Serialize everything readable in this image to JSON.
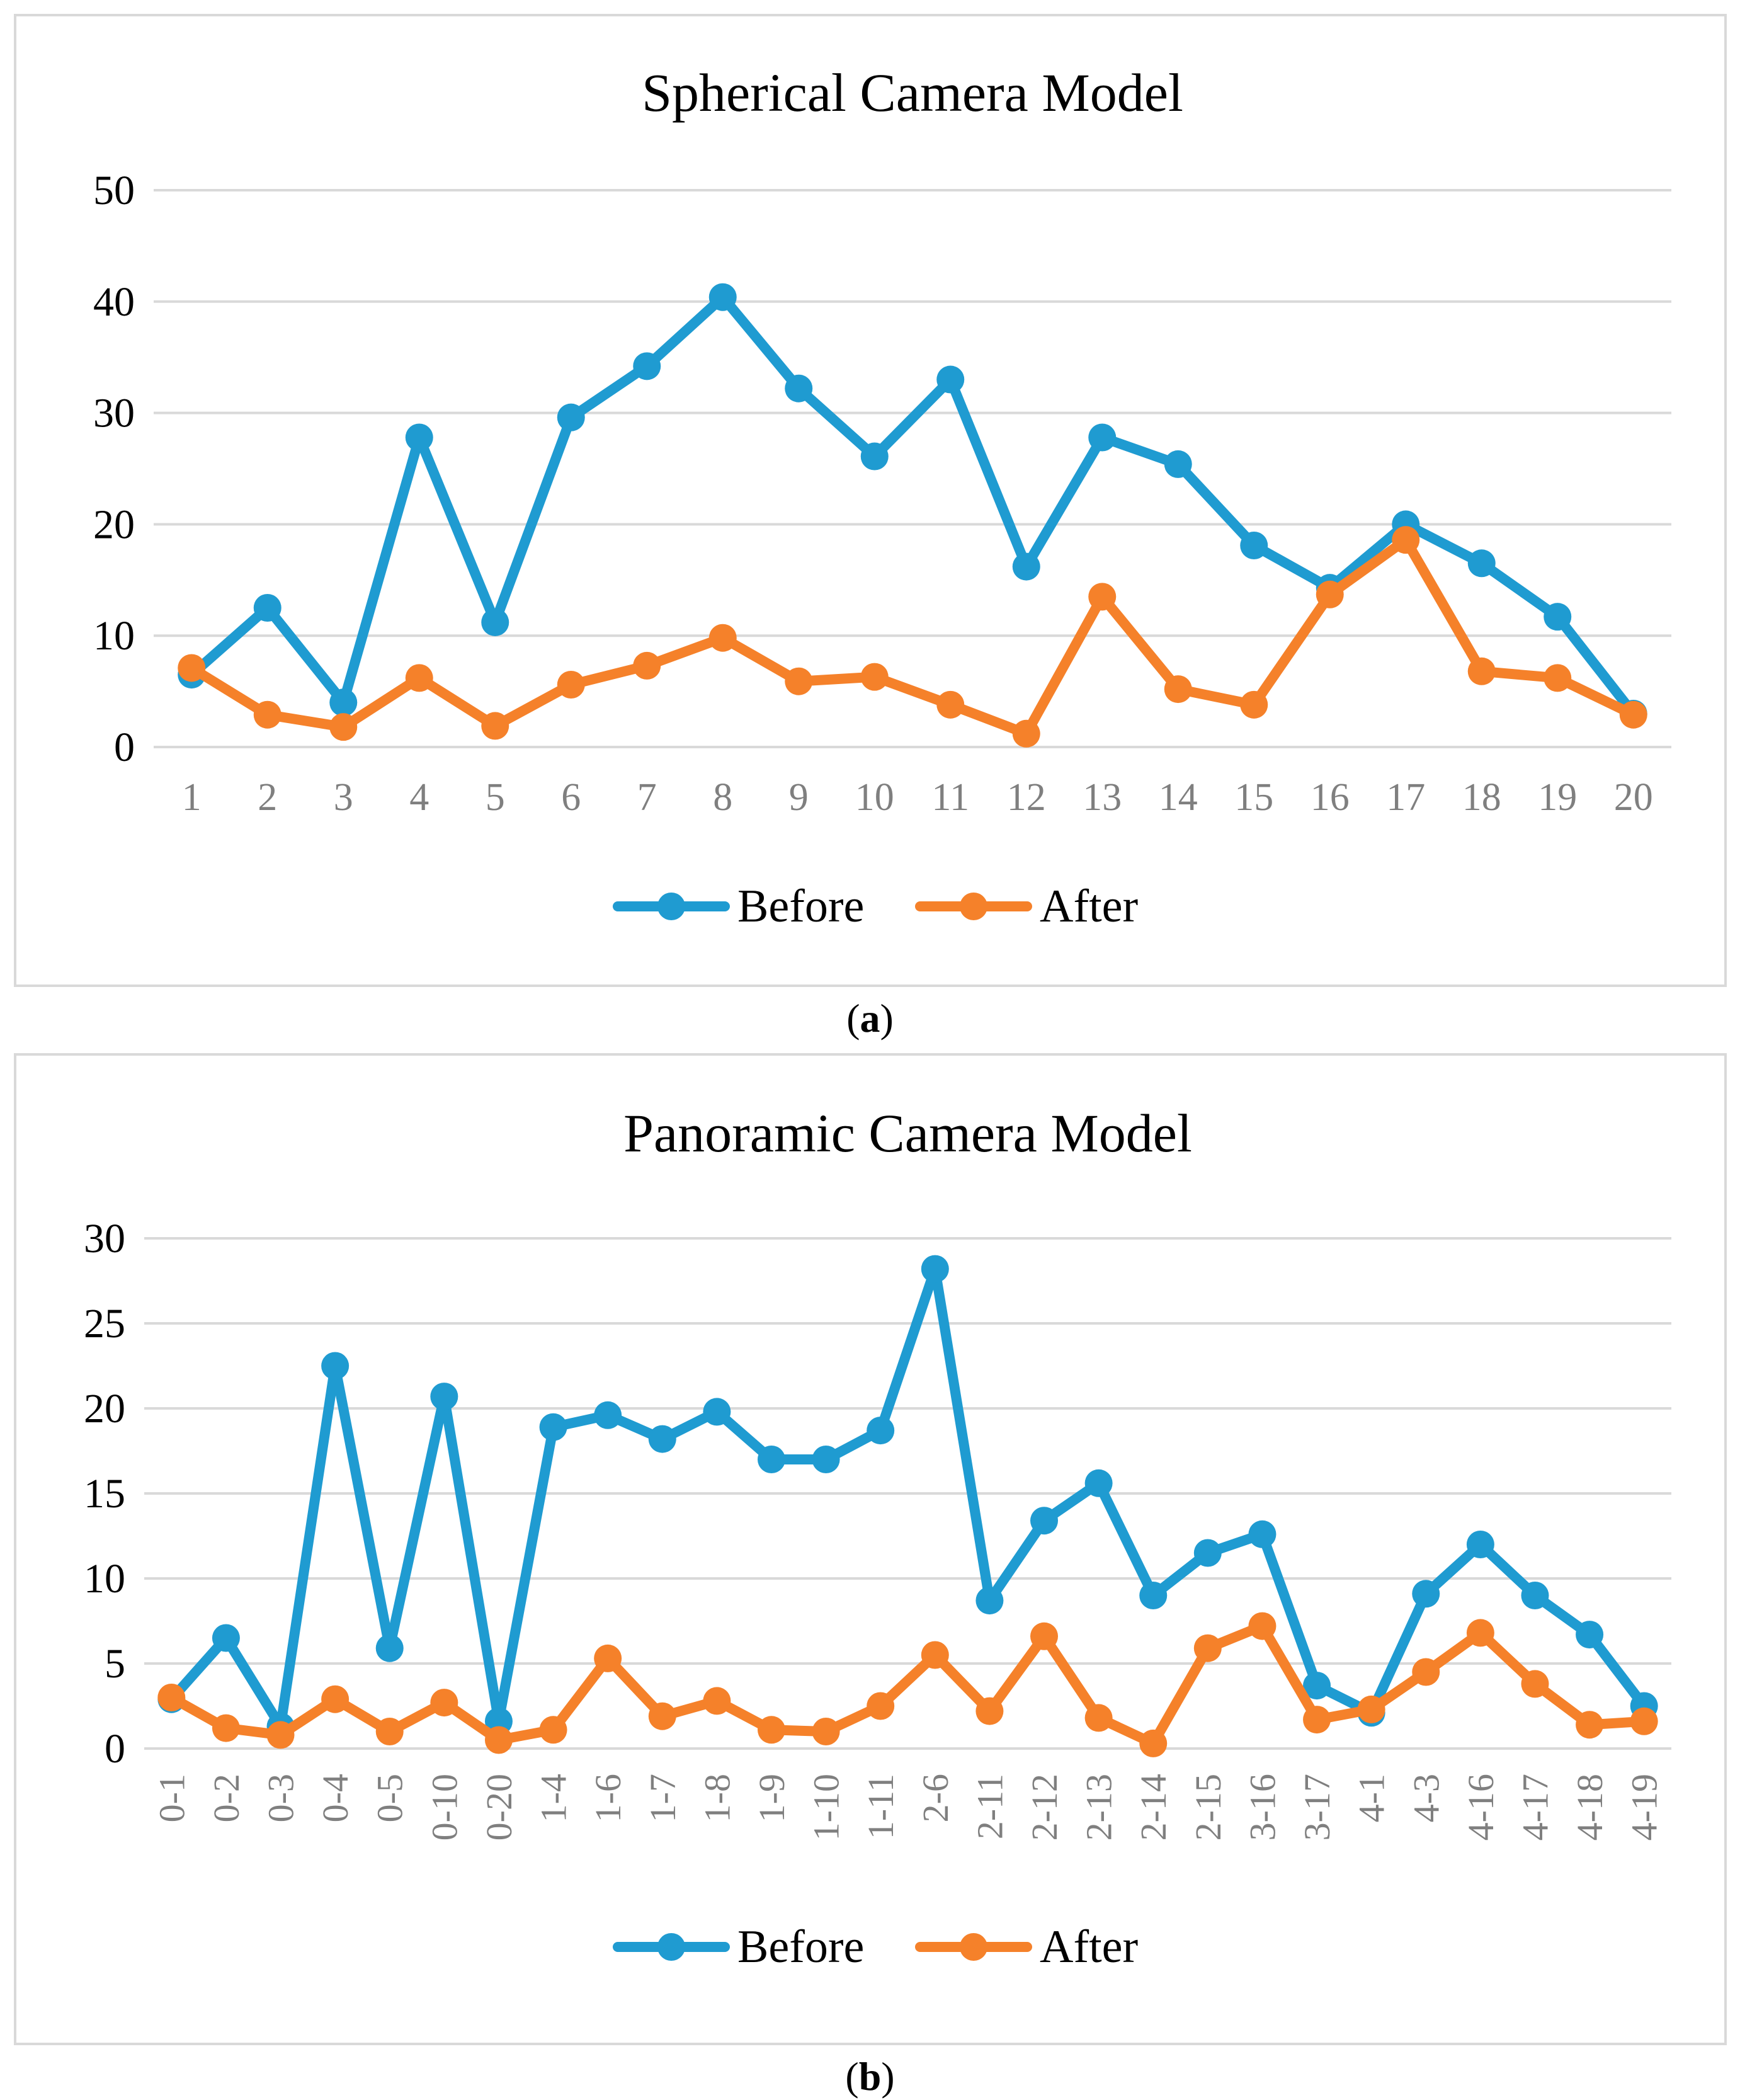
{
  "figure": {
    "panel_a_label": "a",
    "panel_b_label": "b"
  },
  "colors": {
    "before": "#1f9bd1",
    "after": "#f5812a",
    "grid": "#d9d9d9",
    "tick": "#7f7f7f",
    "text": "#000000"
  },
  "chart_data": [
    {
      "type": "line",
      "title": "Spherical Camera Model",
      "xlabel": "",
      "ylabel": "",
      "ylim": [
        0,
        50
      ],
      "yticks": [
        0,
        10,
        20,
        30,
        40,
        50
      ],
      "categories": [
        "1",
        "2",
        "3",
        "4",
        "5",
        "6",
        "7",
        "8",
        "9",
        "10",
        "11",
        "12",
        "13",
        "14",
        "15",
        "16",
        "17",
        "18",
        "19",
        "20"
      ],
      "series": [
        {
          "name": "Before",
          "values": [
            6.5,
            12.5,
            4.0,
            27.8,
            11.2,
            29.6,
            34.2,
            40.4,
            32.2,
            26.1,
            33.0,
            16.2,
            27.8,
            25.4,
            18.1,
            14.3,
            20.0,
            16.5,
            11.7,
            3.0
          ]
        },
        {
          "name": "After",
          "values": [
            7.1,
            2.9,
            1.8,
            6.2,
            1.9,
            5.6,
            7.3,
            9.8,
            5.9,
            6.3,
            3.8,
            1.2,
            13.5,
            5.2,
            3.8,
            13.7,
            18.6,
            6.8,
            6.2,
            2.9
          ]
        }
      ],
      "legend": [
        "Before",
        "After"
      ],
      "legend_position": "bottom"
    },
    {
      "type": "line",
      "title": "Panoramic Camera  Model",
      "xlabel": "",
      "ylabel": "",
      "ylim": [
        0,
        30
      ],
      "yticks": [
        0,
        5,
        10,
        15,
        20,
        25,
        30
      ],
      "categories": [
        "0-1",
        "0-2",
        "0-3",
        "0-4",
        "0-5",
        "0-10",
        "0-20",
        "1-4",
        "1-6",
        "1-7",
        "1-8",
        "1-9",
        "1-10",
        "1-11",
        "2-6",
        "2-11",
        "2-12",
        "2-13",
        "2-14",
        "2-15",
        "3-16",
        "3-17",
        "4-1",
        "4-3",
        "4-16",
        "4-17",
        "4-18",
        "4-19"
      ],
      "series": [
        {
          "name": "Before",
          "values": [
            2.9,
            6.5,
            1.3,
            22.5,
            5.9,
            20.7,
            1.6,
            18.9,
            19.6,
            18.2,
            19.8,
            17.0,
            17.0,
            18.7,
            28.2,
            8.7,
            13.4,
            15.6,
            9.0,
            11.5,
            12.6,
            3.7,
            2.1,
            9.1,
            12.0,
            9.0,
            6.7,
            2.5
          ]
        },
        {
          "name": "After",
          "values": [
            3.0,
            1.2,
            0.8,
            2.9,
            1.0,
            2.7,
            0.5,
            1.1,
            5.3,
            1.9,
            2.8,
            1.1,
            1.0,
            2.5,
            5.5,
            2.2,
            6.6,
            1.8,
            0.3,
            5.9,
            7.2,
            1.7,
            2.3,
            4.5,
            6.8,
            3.8,
            1.4,
            1.6
          ]
        }
      ],
      "legend": [
        "Before",
        "After"
      ],
      "legend_position": "bottom"
    }
  ]
}
